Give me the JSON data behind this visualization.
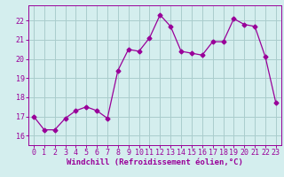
{
  "x": [
    0,
    1,
    2,
    3,
    4,
    5,
    6,
    7,
    8,
    9,
    10,
    11,
    12,
    13,
    14,
    15,
    16,
    17,
    18,
    19,
    20,
    21,
    22,
    23
  ],
  "y": [
    17.0,
    16.3,
    16.3,
    16.9,
    17.3,
    17.5,
    17.3,
    16.9,
    19.4,
    20.5,
    20.4,
    21.1,
    22.3,
    21.7,
    20.4,
    20.3,
    20.2,
    20.9,
    20.9,
    22.1,
    21.8,
    21.7,
    20.1,
    17.7
  ],
  "line_color": "#990099",
  "marker": "D",
  "markersize": 2.5,
  "linewidth": 0.9,
  "bg_color": "#d4eeee",
  "grid_color": "#aacccc",
  "xlabel": "Windchill (Refroidissement éolien,°C)",
  "xlabel_fontsize": 6.5,
  "tick_fontsize": 6,
  "ylim": [
    15.5,
    22.8
  ],
  "xlim": [
    -0.5,
    23.5
  ],
  "yticks": [
    16,
    17,
    18,
    19,
    20,
    21,
    22
  ],
  "xticks": [
    0,
    1,
    2,
    3,
    4,
    5,
    6,
    7,
    8,
    9,
    10,
    11,
    12,
    13,
    14,
    15,
    16,
    17,
    18,
    19,
    20,
    21,
    22,
    23
  ]
}
